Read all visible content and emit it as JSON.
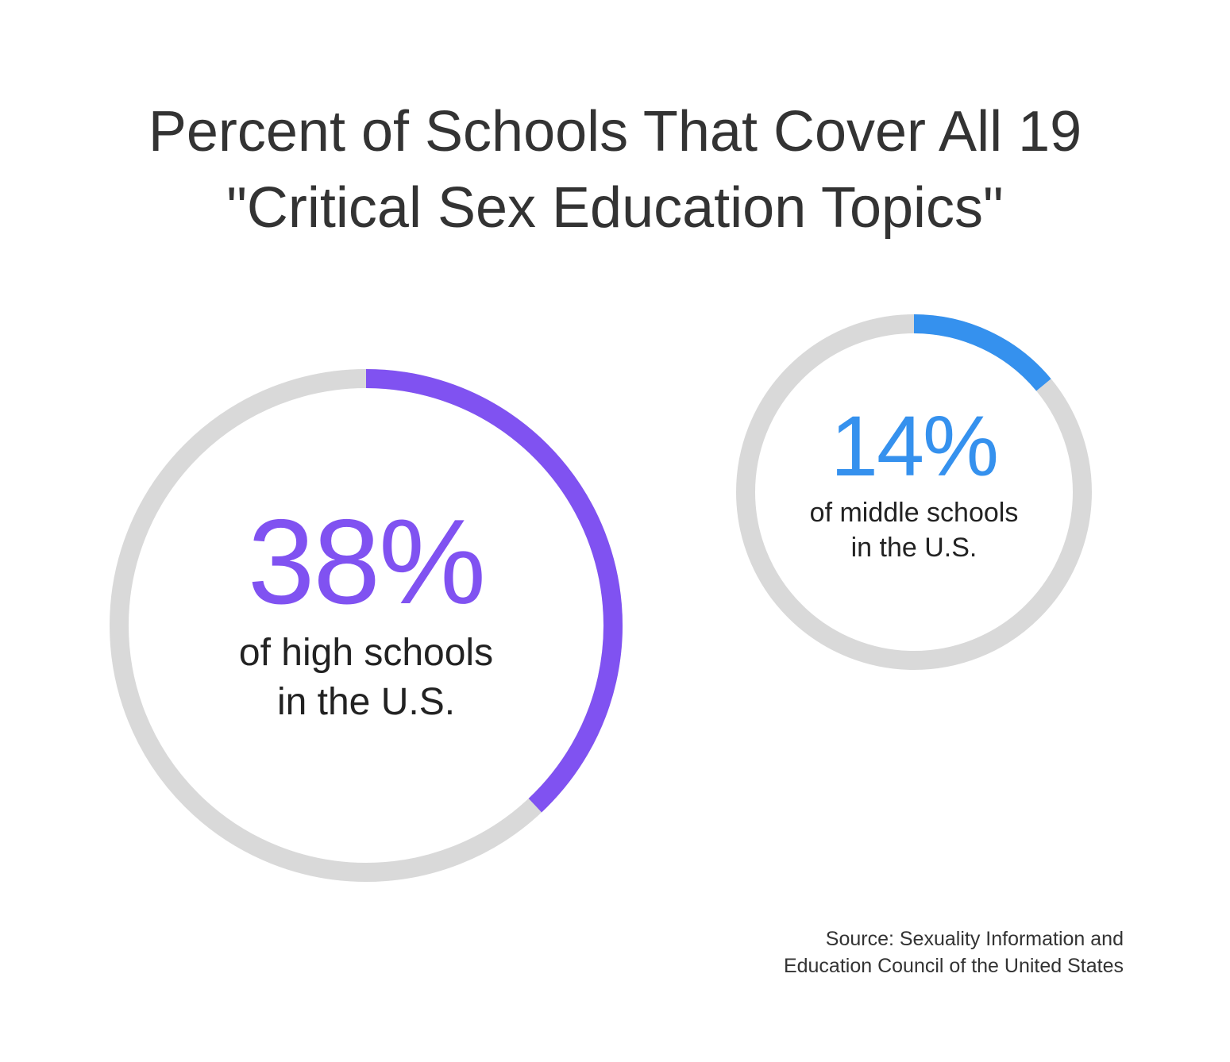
{
  "title": {
    "line1": "Percent of Schools That Cover All 19",
    "line2": "\"Critical Sex Education Topics\""
  },
  "chart_data": [
    {
      "type": "pie",
      "style": "donut",
      "value": 38,
      "unit": "%",
      "label": "38%",
      "caption_line1": "of high schools",
      "caption_line2": "in the U.S.",
      "color": "#8052F1",
      "track_color": "#D9D9D9"
    },
    {
      "type": "pie",
      "style": "donut",
      "value": 14,
      "unit": "%",
      "label": "14%",
      "caption_line1": "of middle schools",
      "caption_line2": "in the U.S.",
      "color": "#3591EE",
      "track_color": "#D9D9D9"
    }
  ],
  "source": {
    "line1": "Source: Sexuality Information and",
    "line2": "Education Council of the United States"
  }
}
